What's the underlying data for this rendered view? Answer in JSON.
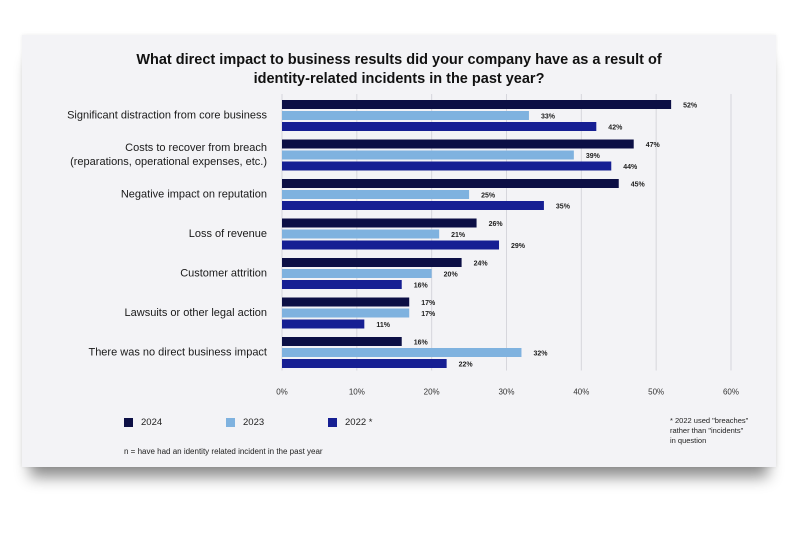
{
  "chart_data": {
    "type": "bar",
    "orientation": "horizontal",
    "title": "What direct impact to business results did your company have as a result of\nidentity-related incidents in the past year?",
    "categories": [
      "Significant distraction from core business",
      "Costs to recover from breach\n(reparations, operational expenses, etc.)",
      "Negative impact on reputation",
      "Loss of revenue",
      "Customer attrition",
      "Lawsuits or other legal action",
      "There was no direct business impact"
    ],
    "series": [
      {
        "name": "2024",
        "color": "#0c0f45",
        "values": [
          52,
          47,
          45,
          26,
          24,
          17,
          16
        ],
        "labels": [
          "52%",
          "47%",
          "45%",
          "26%",
          "24%",
          "17%",
          "16%"
        ]
      },
      {
        "name": "2023",
        "color": "#7fb2df",
        "values": [
          33,
          39,
          25,
          21,
          20,
          17,
          32
        ],
        "labels": [
          "33%",
          "39%",
          "25%",
          "21%",
          "20%",
          "17%",
          "32%"
        ]
      },
      {
        "name": "2022 *",
        "color": "#161f93",
        "values": [
          42,
          44,
          35,
          29,
          16,
          11,
          22
        ],
        "labels": [
          "42%",
          "44%",
          "35%",
          "29%",
          "16%",
          "11%",
          "22%"
        ]
      }
    ],
    "xlim": [
      0,
      60
    ],
    "xticks": [
      "0%",
      "10%",
      "20%",
      "30%",
      "40%",
      "50%",
      "60%"
    ],
    "grid": true,
    "legend": "bottom-left"
  },
  "notes": {
    "n_note": "n = have had an identity related incident in the past year",
    "footnote": "* 2022 used \"breaches\" rather than \"incidents\" in question"
  }
}
